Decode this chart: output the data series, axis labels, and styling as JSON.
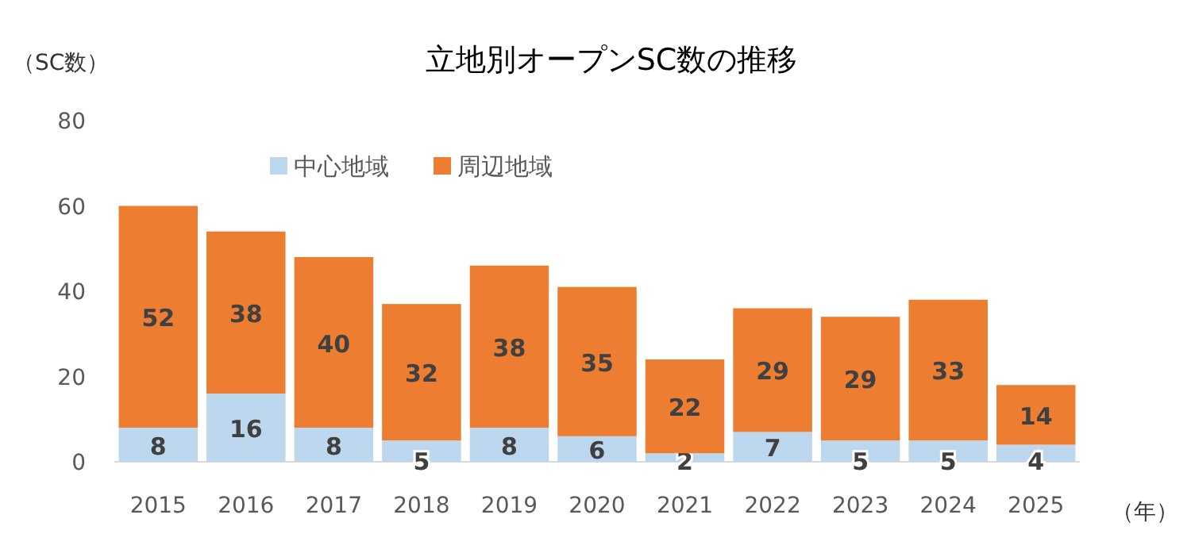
{
  "chart_data": {
    "type": "bar",
    "title": "立地別オープンSC数の推移",
    "ylabel": "（SC数）",
    "xlabel": "（年）",
    "categories": [
      "2015",
      "2016",
      "2017",
      "2018",
      "2019",
      "2020",
      "2021",
      "2022",
      "2023",
      "2024",
      "2025"
    ],
    "series": [
      {
        "name": "中心地域",
        "color": "#bdd7ee",
        "values": [
          8,
          16,
          8,
          5,
          8,
          6,
          2,
          7,
          5,
          5,
          4
        ]
      },
      {
        "name": "周辺地域",
        "color": "#ed7d31",
        "values": [
          52,
          38,
          40,
          32,
          38,
          35,
          22,
          29,
          29,
          33,
          14
        ]
      }
    ],
    "stacked": true,
    "data_labels": true,
    "ylim": [
      0,
      80
    ],
    "yticks": [
      0,
      20,
      40,
      60,
      80
    ],
    "grid": false,
    "legend": "top left"
  }
}
